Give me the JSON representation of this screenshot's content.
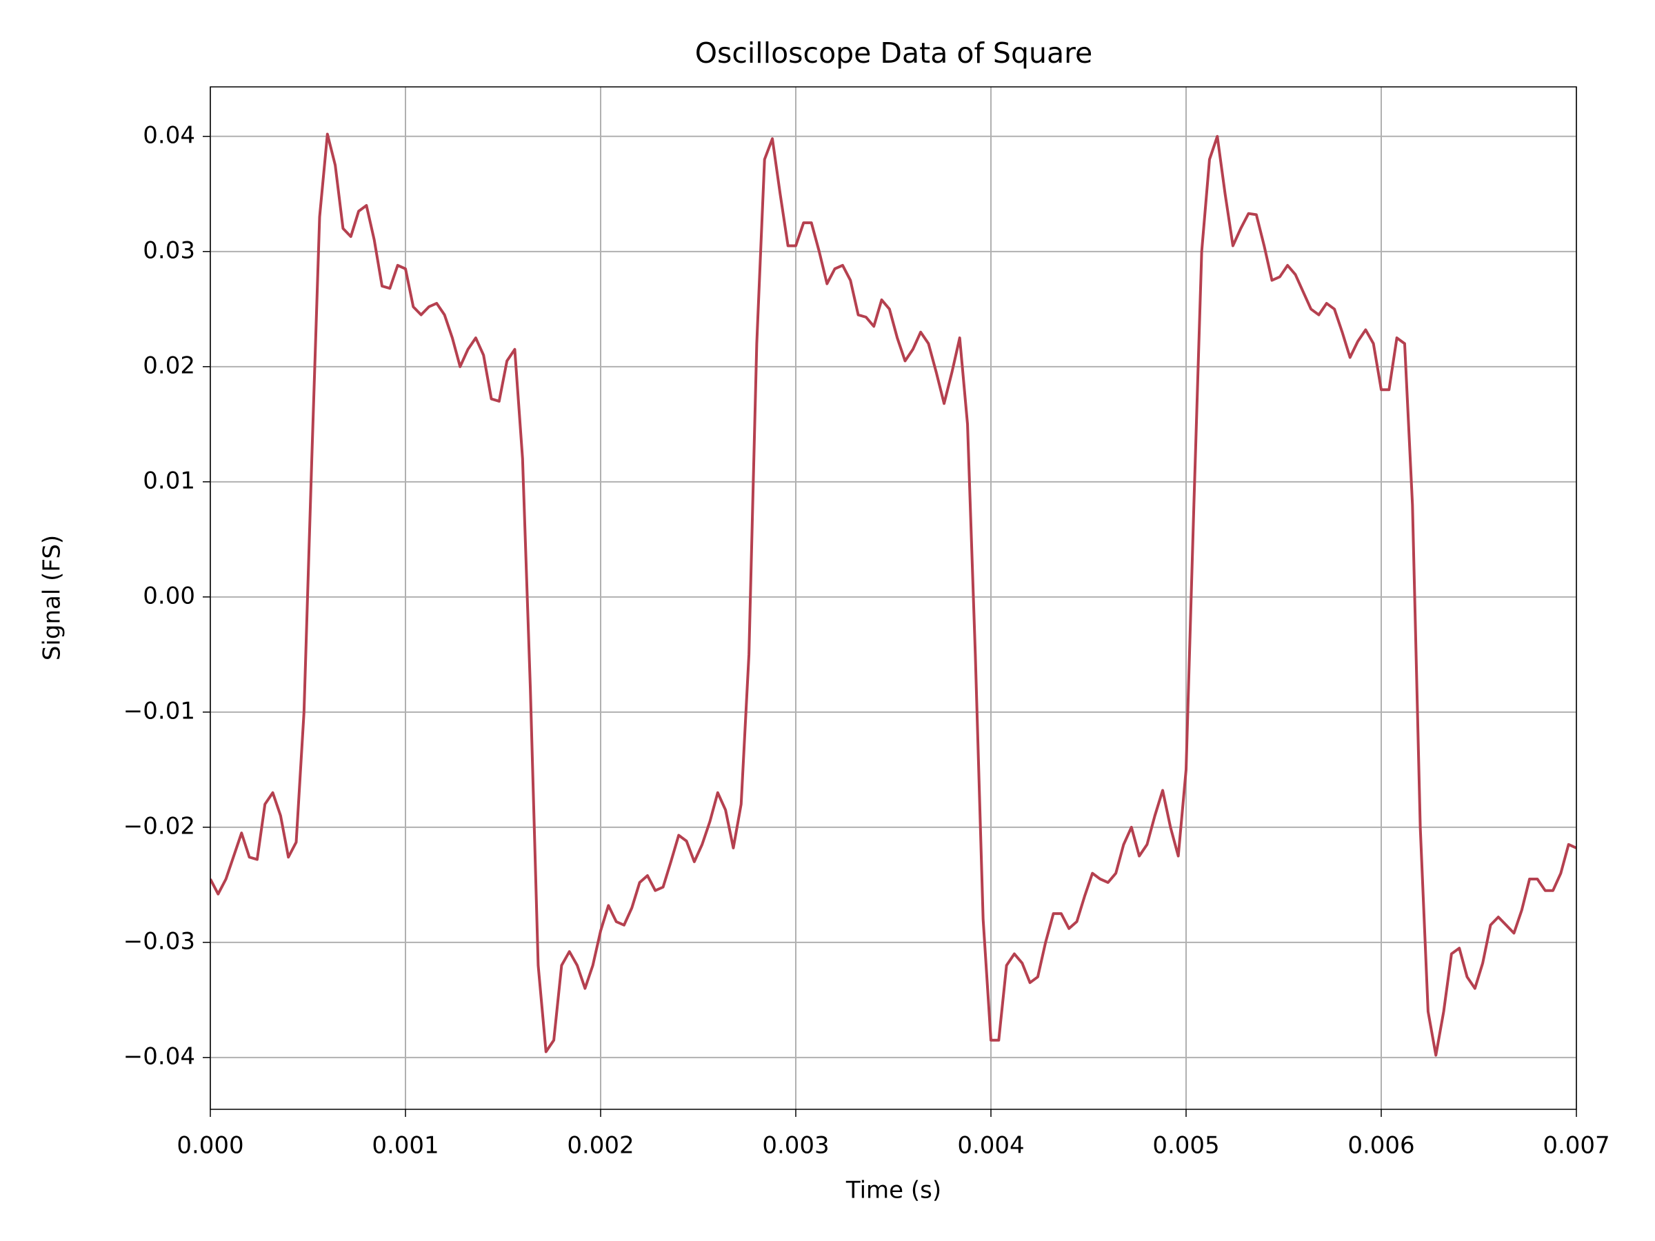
{
  "chart_data": {
    "type": "line",
    "title": "Oscilloscope Data of Square",
    "x_label": "Time (s)",
    "y_label": "Signal (FS)",
    "x": [
      0,
      4e-05,
      8e-05,
      0.00012,
      0.00016,
      0.0002,
      0.00024,
      0.00028,
      0.00032,
      0.00036,
      0.0004,
      0.00044,
      0.00048,
      0.00052,
      0.00056,
      0.0006,
      0.00064,
      0.00068,
      0.00072,
      0.00076,
      0.0008,
      0.00084,
      0.00088,
      0.00092,
      0.00096,
      0.001,
      0.00104,
      0.00108,
      0.00112,
      0.00116,
      0.0012,
      0.00124,
      0.00128,
      0.00132,
      0.00136,
      0.0014,
      0.00144,
      0.00148,
      0.00152,
      0.00156,
      0.0016,
      0.00164,
      0.00168,
      0.00172,
      0.00176,
      0.0018,
      0.00184,
      0.00188,
      0.00192,
      0.00196,
      0.002,
      0.00204,
      0.00208,
      0.00212,
      0.00216,
      0.0022,
      0.00224,
      0.00228,
      0.00232,
      0.00236,
      0.0024,
      0.00244,
      0.00248,
      0.00252,
      0.00256,
      0.0026,
      0.00264,
      0.00268,
      0.00272,
      0.00276,
      0.0028,
      0.00284,
      0.00288,
      0.00292,
      0.00296,
      0.003,
      0.00304,
      0.00308,
      0.00312,
      0.00316,
      0.0032,
      0.00324,
      0.00328,
      0.00332,
      0.00336,
      0.0034,
      0.00344,
      0.00348,
      0.00352,
      0.00356,
      0.0036,
      0.00364,
      0.00368,
      0.00372,
      0.00376,
      0.0038,
      0.00384,
      0.00388,
      0.00392,
      0.00396,
      0.004,
      0.00404,
      0.00408,
      0.00412,
      0.00416,
      0.0042,
      0.00424,
      0.00428,
      0.00432,
      0.00436,
      0.0044,
      0.00444,
      0.00448,
      0.00452,
      0.00456,
      0.0046,
      0.00464,
      0.00468,
      0.00472,
      0.00476,
      0.0048,
      0.00484,
      0.00488,
      0.00492,
      0.00496,
      0.005,
      0.00504,
      0.00508,
      0.00512,
      0.00516,
      0.0052,
      0.00524,
      0.00528,
      0.00532,
      0.00536,
      0.0054,
      0.00544,
      0.00548,
      0.00552,
      0.00556,
      0.0056,
      0.00564,
      0.00568,
      0.00572,
      0.00576,
      0.0058,
      0.00584,
      0.00588,
      0.00592,
      0.00596,
      0.006,
      0.00604,
      0.00608,
      0.00612,
      0.00616,
      0.0062,
      0.00624,
      0.00628,
      0.00632,
      0.00636,
      0.0064,
      0.00644,
      0.00648,
      0.00652,
      0.00656,
      0.0066,
      0.00664,
      0.00668,
      0.00672,
      0.00676,
      0.0068,
      0.00684,
      0.00688,
      0.00692,
      0.00696,
      0.007
    ],
    "series": [
      {
        "color": "#b5404f",
        "values": [
          -0.0245,
          -0.0258,
          -0.0245,
          -0.0225,
          -0.0205,
          -0.0226,
          -0.0228,
          -0.018,
          -0.017,
          -0.019,
          -0.0226,
          -0.0213,
          -0.01,
          0.012,
          0.033,
          0.0402,
          0.0375,
          0.032,
          0.0313,
          0.0335,
          0.034,
          0.031,
          0.027,
          0.0268,
          0.0288,
          0.0285,
          0.0252,
          0.0245,
          0.0252,
          0.0255,
          0.0245,
          0.0225,
          0.02,
          0.0215,
          0.0225,
          0.021,
          0.0172,
          0.017,
          0.0205,
          0.0215,
          0.012,
          -0.008,
          -0.032,
          -0.0395,
          -0.0385,
          -0.032,
          -0.0308,
          -0.032,
          -0.034,
          -0.032,
          -0.029,
          -0.0268,
          -0.0282,
          -0.0285,
          -0.027,
          -0.0248,
          -0.0242,
          -0.0255,
          -0.0252,
          -0.023,
          -0.0207,
          -0.0212,
          -0.023,
          -0.0215,
          -0.0195,
          -0.017,
          -0.0185,
          -0.0218,
          -0.018,
          -0.005,
          0.022,
          0.038,
          0.0398,
          0.035,
          0.0305,
          0.0305,
          0.0325,
          0.0325,
          0.03,
          0.0272,
          0.0285,
          0.0288,
          0.0275,
          0.0245,
          0.0243,
          0.0235,
          0.0258,
          0.025,
          0.0225,
          0.0205,
          0.0215,
          0.023,
          0.022,
          0.0195,
          0.0168,
          0.0195,
          0.0225,
          0.015,
          -0.005,
          -0.028,
          -0.0385,
          -0.0385,
          -0.032,
          -0.031,
          -0.0318,
          -0.0335,
          -0.033,
          -0.03,
          -0.0275,
          -0.0275,
          -0.0288,
          -0.0282,
          -0.026,
          -0.024,
          -0.0245,
          -0.0248,
          -0.024,
          -0.0215,
          -0.02,
          -0.0225,
          -0.0215,
          -0.019,
          -0.0168,
          -0.02,
          -0.0225,
          -0.015,
          0.008,
          0.03,
          0.038,
          0.04,
          0.035,
          0.0305,
          0.032,
          0.0333,
          0.0332,
          0.0305,
          0.0275,
          0.0278,
          0.0288,
          0.028,
          0.0265,
          0.025,
          0.0245,
          0.0255,
          0.025,
          0.023,
          0.0208,
          0.0222,
          0.0232,
          0.022,
          0.018,
          0.018,
          0.0225,
          0.022,
          0.008,
          -0.02,
          -0.036,
          -0.0398,
          -0.036,
          -0.031,
          -0.0305,
          -0.033,
          -0.034,
          -0.0318,
          -0.0285,
          -0.0278,
          -0.0285,
          -0.0292,
          -0.0272,
          -0.0245,
          -0.0245,
          -0.0255,
          -0.0255,
          -0.024,
          -0.0215,
          -0.0218
        ]
      }
    ],
    "xlim": [
      0,
      0.007
    ],
    "xticks": [
      {
        "value": 0,
        "label": "0.000"
      },
      {
        "value": 0.001,
        "label": "0.001"
      },
      {
        "value": 0.002,
        "label": "0.002"
      },
      {
        "value": 0.003,
        "label": "0.003"
      },
      {
        "value": 0.004,
        "label": "0.004"
      },
      {
        "value": 0.005,
        "label": "0.005"
      },
      {
        "value": 0.006,
        "label": "0.006"
      },
      {
        "value": 0.007,
        "label": "0.007"
      }
    ],
    "ylim": [
      -0.0445,
      0.0443
    ],
    "yticks": [
      {
        "value": -0.04,
        "label": "−0.04"
      },
      {
        "value": -0.03,
        "label": "−0.03"
      },
      {
        "value": -0.02,
        "label": "−0.02"
      },
      {
        "value": -0.01,
        "label": "−0.01"
      },
      {
        "value": 0,
        "label": "0.00"
      },
      0.01,
      0.02,
      0.03,
      0.04
    ],
    "grid": true
  }
}
